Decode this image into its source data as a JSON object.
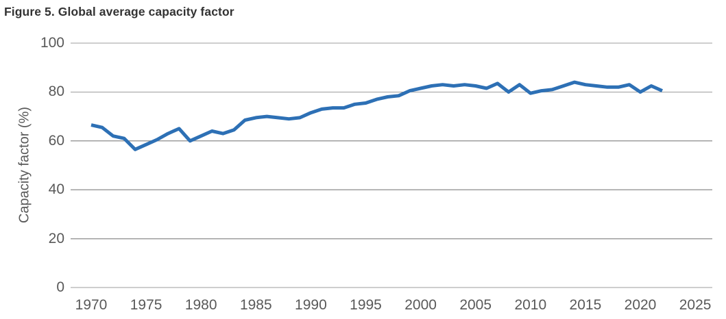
{
  "figure": {
    "title": "Figure 5. Global average capacity factor"
  },
  "colors": {
    "line": "#2D70B5",
    "grid": "#9d9d9d",
    "tick_text": "#595959",
    "title_text": "#333333",
    "background": "#ffffff"
  },
  "chart_data": {
    "type": "line",
    "title": "Figure 5. Global average capacity factor",
    "xlabel": "",
    "ylabel": "Capacity factor (%)",
    "ylim": [
      0,
      100
    ],
    "xlim": [
      1968,
      2027
    ],
    "yticks": [
      0,
      20,
      40,
      60,
      80,
      100
    ],
    "xticks": [
      1970,
      1975,
      1980,
      1985,
      1990,
      1995,
      2000,
      2005,
      2010,
      2015,
      2020,
      2025
    ],
    "grid": "horizontal",
    "legend": "none",
    "series": [
      {
        "name": "Global average capacity factor (%)",
        "x": [
          1970,
          1971,
          1972,
          1973,
          1974,
          1975,
          1976,
          1977,
          1978,
          1979,
          1980,
          1981,
          1982,
          1983,
          1984,
          1985,
          1986,
          1987,
          1988,
          1989,
          1990,
          1991,
          1992,
          1993,
          1994,
          1995,
          1996,
          1997,
          1998,
          1999,
          2000,
          2001,
          2002,
          2003,
          2004,
          2005,
          2006,
          2007,
          2008,
          2009,
          2010,
          2011,
          2012,
          2013,
          2014,
          2015,
          2016,
          2017,
          2018,
          2019,
          2020,
          2021,
          2022
        ],
        "y": [
          66.5,
          65.5,
          62,
          61,
          56.5,
          58.5,
          60.5,
          63,
          65,
          60,
          62,
          64,
          63,
          64.5,
          68.5,
          69.5,
          70,
          69.5,
          69,
          69.5,
          71.5,
          73,
          73.5,
          73.5,
          75,
          75.5,
          77,
          78,
          78.5,
          80.5,
          81.5,
          82.5,
          83,
          82.5,
          83,
          82.5,
          81.5,
          83.5,
          80,
          83,
          79.5,
          80.5,
          81,
          82.5,
          84,
          83,
          82.5,
          82,
          82,
          83,
          80,
          82.5,
          80.5
        ]
      }
    ]
  }
}
